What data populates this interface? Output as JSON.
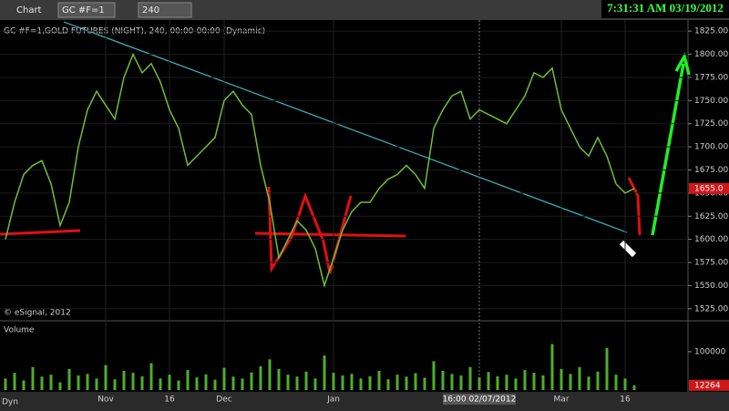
{
  "ui": {
    "window_title": "Chart",
    "symbol": "GC #F=1",
    "interval": "240",
    "clock": "7:31:31 AM 03/19/2012",
    "dyn": "Dyn",
    "crosshair_label": "16:00 02/07/2012",
    "copyright": "© eSignal, 2012"
  },
  "chart_data": [
    {
      "type": "line",
      "title": "GC #F=1,GOLD FUTURES (NIGHT), 240, 00:00-00:00 (Dynamic)",
      "categories": [
        null,
        null,
        null,
        null,
        null,
        null,
        null,
        null,
        null,
        null,
        null,
        "Nov",
        null,
        null,
        null,
        null,
        null,
        null,
        "16",
        null,
        null,
        null,
        null,
        null,
        "Dec",
        null,
        null,
        null,
        null,
        null,
        null,
        null,
        null,
        null,
        null,
        null,
        "Jan",
        null,
        null,
        null,
        null,
        null,
        null,
        null,
        null,
        null,
        null,
        null,
        null,
        null,
        null,
        null,
        null,
        null,
        null,
        null,
        null,
        null,
        null,
        null,
        null,
        "Mar",
        null,
        null,
        null,
        null,
        null,
        null,
        "16",
        null
      ],
      "series": [
        {
          "name": "GC #F=1",
          "color": "#6fbf3a",
          "values": [
            1600,
            1640,
            1670,
            1680,
            1685,
            1660,
            1615,
            1640,
            1700,
            1740,
            1760,
            1745,
            1730,
            1775,
            1800,
            1780,
            1790,
            1770,
            1740,
            1720,
            1680,
            1690,
            1700,
            1710,
            1750,
            1760,
            1745,
            1735,
            1680,
            1640,
            1580,
            1600,
            1620,
            1610,
            1590,
            1550,
            1580,
            1610,
            1630,
            1640,
            1640,
            1655,
            1665,
            1670,
            1680,
            1670,
            1655,
            1720,
            1740,
            1755,
            1760,
            1730,
            1740,
            1735,
            1730,
            1725,
            1740,
            1755,
            1780,
            1775,
            1785,
            1740,
            1720,
            1700,
            1690,
            1710,
            1690,
            1660,
            1650,
            1655
          ]
        }
      ],
      "ylim": [
        1512,
        1837
      ],
      "yticks": [
        {
          "value": 1525,
          "label": "1525.00"
        },
        {
          "value": 1550,
          "label": "1550.00"
        },
        {
          "value": 1575,
          "label": "1575.00"
        },
        {
          "value": 1600,
          "label": "1600.00"
        },
        {
          "value": 1625,
          "label": "1625.00"
        },
        {
          "value": 1650,
          "label": "1650.00"
        },
        {
          "value": 1675,
          "label": "1675.00"
        },
        {
          "value": 1700,
          "label": "1700.00"
        },
        {
          "value": 1725,
          "label": "1725.00"
        },
        {
          "value": 1750,
          "label": "1750.00"
        },
        {
          "value": 1775,
          "label": "1775.00"
        },
        {
          "value": 1800,
          "label": "1800.00"
        },
        {
          "value": 1825,
          "label": "1825.00"
        }
      ],
      "last_price": {
        "value": 1655,
        "label": "1655.0"
      },
      "grid": true
    },
    {
      "type": "bar",
      "title": "Volume",
      "color": "#4fae2a",
      "values": [
        30000,
        45000,
        25000,
        60000,
        35000,
        40000,
        20000,
        55000,
        38000,
        42000,
        30000,
        65000,
        28000,
        50000,
        45000,
        36000,
        70000,
        30000,
        40000,
        25000,
        52000,
        33000,
        41000,
        27000,
        58000,
        35000,
        30000,
        46000,
        62000,
        80000,
        55000,
        40000,
        35000,
        48000,
        30000,
        90000,
        45000,
        38000,
        42000,
        30000,
        36000,
        50000,
        28000,
        40000,
        35000,
        44000,
        32000,
        75000,
        50000,
        42000,
        38000,
        60000,
        33000,
        47000,
        36000,
        40000,
        30000,
        52000,
        45000,
        38000,
        120000,
        55000,
        42000,
        60000,
        35000,
        48000,
        110000,
        40000,
        30000,
        12264
      ],
      "ylim": [
        0,
        171000
      ],
      "yticks": [
        100000
      ],
      "last_volume": 12264
    }
  ]
}
